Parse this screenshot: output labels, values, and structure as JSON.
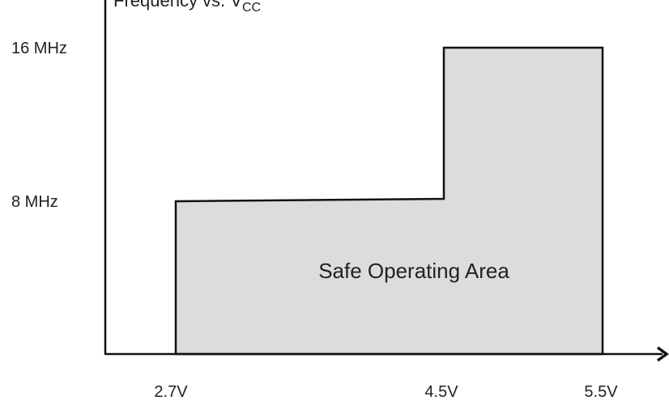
{
  "diagram": {
    "title": {
      "prefix": "Frequency vs. V",
      "subscript": "CC"
    },
    "y_ticks": [
      "16 MHz",
      "8 MHz"
    ],
    "x_ticks": [
      "2.7V",
      "4.5V",
      "5.5V"
    ],
    "area_label": "Safe Operating Area"
  },
  "colors": {
    "area_fill": "#dcdcdd",
    "stroke": "#111111",
    "text": "#222222"
  },
  "chart_data": {
    "type": "area",
    "title": "Frequency vs. VCC",
    "xlabel": "",
    "ylabel": "",
    "x": [
      2.7,
      4.5,
      4.5,
      5.5
    ],
    "y": [
      8,
      8,
      16,
      16
    ],
    "x_tick_labels": [
      "2.7V",
      "4.5V",
      "5.5V"
    ],
    "y_tick_labels": [
      "8 MHz",
      "16 MHz"
    ],
    "series": [
      {
        "name": "Safe Operating Area",
        "points": [
          [
            2.7,
            8
          ],
          [
            4.5,
            8
          ],
          [
            4.5,
            16
          ],
          [
            5.5,
            16
          ]
        ]
      }
    ],
    "grid": false,
    "legend": "none"
  }
}
